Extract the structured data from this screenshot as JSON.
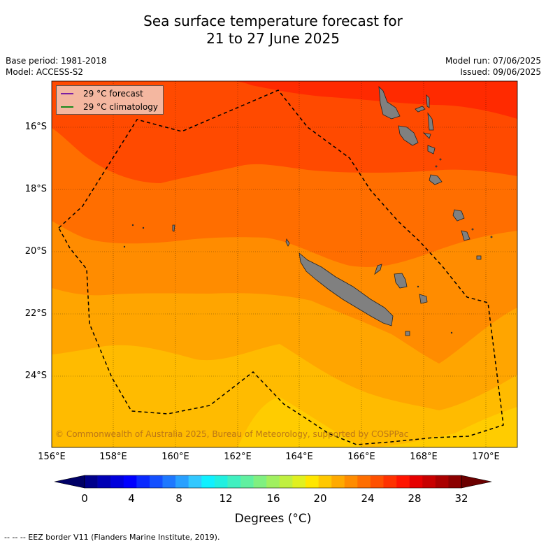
{
  "title_line1": "Sea surface temperature forecast for",
  "title_line2": "21 to 27 June 2025",
  "base_period": "Base period: 1981-2018",
  "model": "Model: ACCESS-S2",
  "model_run": "Model run: 07/06/2025",
  "issued": "Issued: 09/06/2025",
  "legend": {
    "forecast": "29 °C  forecast",
    "climatology": "29 °C  climatology",
    "forecast_color": "#7b1fa2",
    "climatology_color": "#1b8a1b"
  },
  "lat_labels": [
    "16°S",
    "18°S",
    "20°S",
    "22°S",
    "24°S"
  ],
  "lon_labels": [
    "156°E",
    "158°E",
    "160°E",
    "162°E",
    "164°E",
    "166°E",
    "168°E",
    "170°E"
  ],
  "colorbar": {
    "ticks": [
      "0",
      "4",
      "8",
      "12",
      "16",
      "20",
      "24",
      "28",
      "32"
    ],
    "label": "Degrees (°C)",
    "colors": [
      "#00008b",
      "#0000b4",
      "#0000dc",
      "#0000ff",
      "#0a2aff",
      "#1450ff",
      "#1e78ff",
      "#28a0ff",
      "#32c8ff",
      "#10f0ff",
      "#20f0e0",
      "#40f0c0",
      "#60f0a0",
      "#80f080",
      "#a0f060",
      "#c0f040",
      "#e0f020",
      "#ffe600",
      "#ffc800",
      "#ffaa00",
      "#ff8c00",
      "#ff6e00",
      "#ff5000",
      "#ff3200",
      "#ff1400",
      "#e60000",
      "#c80000",
      "#aa0000",
      "#8b0000"
    ],
    "under_color": "#000066",
    "over_color": "#6b0000"
  },
  "copyright": "© Commonwealth of Australia 2025, Bureau of Meteorology, supported by COSPPac",
  "footer": "--  --  -- EEZ border V11 (Flanders Marine Institute, 2019)."
}
